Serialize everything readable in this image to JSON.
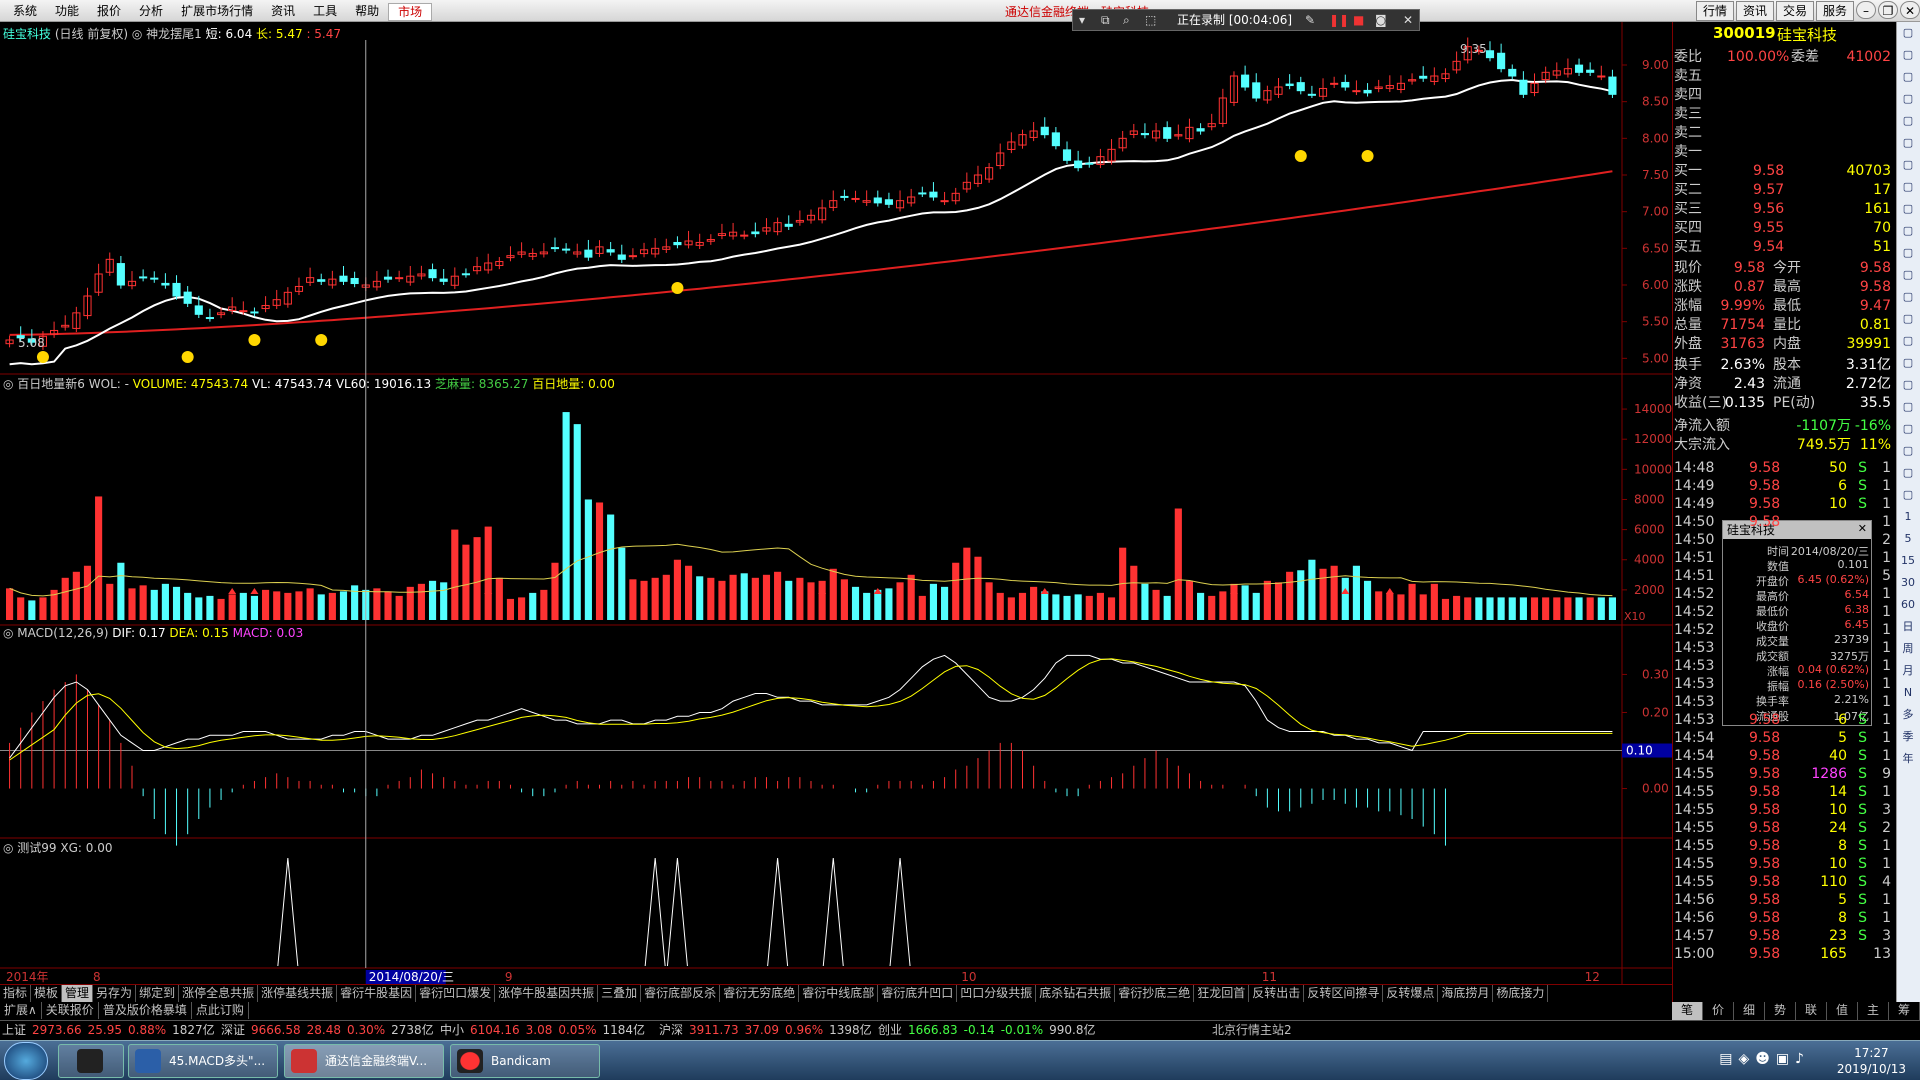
{
  "menu": [
    "系统",
    "功能",
    "报价",
    "分析",
    "扩展市场行情",
    "资讯",
    "工具",
    "帮助",
    "市场"
  ],
  "app_title": "通达信金融终端 - 硅宝科技",
  "recorder": {
    "status": "正在录制 [00:04:06]"
  },
  "top_right_buttons": [
    "行情",
    "资讯",
    "交易",
    "服务"
  ],
  "chart_header": {
    "stock": "硅宝科技",
    "mode": "(日线 前复权)",
    "indicator": "神龙摆尾1",
    "short_label": "短: 6.04",
    "long_label": "长: 5.47",
    "third_label": ": 5.47"
  },
  "price_axis": {
    "ticks": [
      "9.00",
      "8.50",
      "8.00",
      "7.50",
      "7.00",
      "6.50",
      "6.00",
      "5.50",
      "5.00"
    ]
  },
  "price_annotations": {
    "high": "9.35",
    "low": "5.08"
  },
  "volume_header": {
    "name": "百日地量新6",
    "wol": "WOL: -",
    "volume": "VOLUME: 47543.74",
    "vl": "VL: 47543.74",
    "vl60": "VL60: 19016.13",
    "zhima": "芝麻量: 8365.27",
    "dil": "百日地量: 0.00"
  },
  "volume_axis": {
    "ticks": [
      "14000",
      "12000",
      "10000",
      "8000",
      "6000",
      "4000",
      "2000"
    ],
    "unit": "X10"
  },
  "macd_header": {
    "name": "MACD(12,26,9)",
    "dif": "DIF: 0.17",
    "dea": "DEA: 0.15",
    "macd": "MACD: 0.03"
  },
  "macd_axis": {
    "ticks": [
      "0.30",
      "0.20",
      "0.10",
      "0.00"
    ],
    "current": "0.10"
  },
  "test_header": {
    "name": "测试99",
    "xg": "XG: 0.00"
  },
  "date_axis": {
    "year": "2014年",
    "months": [
      "8",
      "9",
      "10",
      "11",
      "12"
    ],
    "cursor": "2014/08/20/三",
    "period": "日线"
  },
  "panel": {
    "code": "300019",
    "name": "硅宝科技",
    "weibi": {
      "label": "委比",
      "value": "100.00%",
      "label2": "委差",
      "value2": "41002"
    },
    "sells": [
      {
        "label": "卖五"
      },
      {
        "label": "卖四"
      },
      {
        "label": "卖三"
      },
      {
        "label": "卖二"
      },
      {
        "label": "卖一"
      }
    ],
    "buys": [
      {
        "label": "买一",
        "price": "9.58",
        "vol": "40703"
      },
      {
        "label": "买二",
        "price": "9.57",
        "vol": "17"
      },
      {
        "label": "买三",
        "price": "9.56",
        "vol": "161"
      },
      {
        "label": "买四",
        "price": "9.55",
        "vol": "70"
      },
      {
        "label": "买五",
        "price": "9.54",
        "vol": "51"
      }
    ],
    "quote": [
      {
        "l1": "现价",
        "v1": "9.58",
        "l2": "今开",
        "v2": "9.58"
      },
      {
        "l1": "涨跌",
        "v1": "0.87",
        "l2": "最高",
        "v2": "9.58"
      },
      {
        "l1": "涨幅",
        "v1": "9.99%",
        "l2": "最低",
        "v2": "9.47"
      },
      {
        "l1": "总量",
        "v1": "71754",
        "l2": "量比",
        "v2": "0.81"
      },
      {
        "l1": "外盘",
        "v1": "31763",
        "l2": "内盘",
        "v2": "39991"
      }
    ],
    "fin": [
      {
        "l1": "换手",
        "v1": "2.63%",
        "l2": "股本",
        "v2": "3.31亿"
      },
      {
        "l1": "净资",
        "v1": "2.43",
        "l2": "流通",
        "v2": "2.72亿"
      },
      {
        "l1": "收益(三)",
        "v1": "0.135",
        "l2": "PE(动)",
        "v2": "35.5"
      }
    ],
    "flow": [
      {
        "l": "净流入额",
        "v": "-1107万",
        "p": "-16%"
      },
      {
        "l": "大宗流入",
        "v": "749.5万",
        "p": "11%"
      }
    ],
    "ticks": [
      {
        "t": "14:48",
        "p": "9.58",
        "v": "50",
        "s": "S",
        "n": "1"
      },
      {
        "t": "14:49",
        "p": "9.58",
        "v": "6",
        "s": "S",
        "n": "1"
      },
      {
        "t": "14:49",
        "p": "9.58",
        "v": "10",
        "s": "S",
        "n": "1"
      },
      {
        "t": "14:50",
        "p": "9.58",
        "v": "",
        "s": "",
        "n": "1"
      },
      {
        "t": "14:50",
        "p": "",
        "v": "",
        "s": "",
        "n": "2"
      },
      {
        "t": "14:51",
        "p": "",
        "v": "",
        "s": "",
        "n": "1"
      },
      {
        "t": "14:51",
        "p": "",
        "v": "",
        "s": "",
        "n": "5"
      },
      {
        "t": "14:52",
        "p": "",
        "v": "",
        "s": "",
        "n": "1"
      },
      {
        "t": "14:52",
        "p": "",
        "v": "",
        "s": "",
        "n": "1"
      },
      {
        "t": "14:52",
        "p": "",
        "v": "",
        "s": "",
        "n": "1"
      },
      {
        "t": "14:53",
        "p": "",
        "v": "",
        "s": "",
        "n": "1"
      },
      {
        "t": "14:53",
        "p": "",
        "v": "",
        "s": "",
        "n": "1"
      },
      {
        "t": "14:53",
        "p": "",
        "v": "",
        "s": "",
        "n": "1"
      },
      {
        "t": "14:53",
        "p": "",
        "v": "",
        "s": "",
        "n": "1"
      },
      {
        "t": "14:53",
        "p": "9.58",
        "v": "6",
        "s": "S",
        "n": "1"
      },
      {
        "t": "14:54",
        "p": "9.58",
        "v": "5",
        "s": "S",
        "n": "1"
      },
      {
        "t": "14:54",
        "p": "9.58",
        "v": "40",
        "s": "S",
        "n": "1"
      },
      {
        "t": "14:55",
        "p": "9.58",
        "v": "1286",
        "s": "S",
        "n": "9"
      },
      {
        "t": "14:55",
        "p": "9.58",
        "v": "14",
        "s": "S",
        "n": "1"
      },
      {
        "t": "14:55",
        "p": "9.58",
        "v": "10",
        "s": "S",
        "n": "3"
      },
      {
        "t": "14:55",
        "p": "9.58",
        "v": "24",
        "s": "S",
        "n": "2"
      },
      {
        "t": "14:55",
        "p": "9.58",
        "v": "8",
        "s": "S",
        "n": "1"
      },
      {
        "t": "14:55",
        "p": "9.58",
        "v": "10",
        "s": "S",
        "n": "1"
      },
      {
        "t": "14:55",
        "p": "9.58",
        "v": "110",
        "s": "S",
        "n": "4"
      },
      {
        "t": "14:56",
        "p": "9.58",
        "v": "5",
        "s": "S",
        "n": "1"
      },
      {
        "t": "14:56",
        "p": "9.58",
        "v": "8",
        "s": "S",
        "n": "1"
      },
      {
        "t": "14:57",
        "p": "9.58",
        "v": "23",
        "s": "S",
        "n": "3"
      },
      {
        "t": "15:00",
        "p": "9.58",
        "v": "165",
        "s": "",
        "n": "13"
      }
    ]
  },
  "tooltip": {
    "title": "硅宝科技",
    "rows": [
      {
        "l": "时间",
        "v": "2014/08/20/三"
      },
      {
        "l": "数值",
        "v": "0.101"
      },
      {
        "l": "开盘价",
        "v": "6.45 (0.62%)"
      },
      {
        "l": "最高价",
        "v": "6.54"
      },
      {
        "l": "最低价",
        "v": "6.38"
      },
      {
        "l": "收盘价",
        "v": "6.45"
      },
      {
        "l": "成交量",
        "v": "23739"
      },
      {
        "l": "成交额",
        "v": "3275万"
      },
      {
        "l": "涨幅",
        "v": "0.04 (0.62%)"
      },
      {
        "l": "振幅",
        "v": "0.16 (2.50%)"
      },
      {
        "l": "换手率",
        "v": "2.21%"
      },
      {
        "l": "流通股",
        "v": "1.07亿"
      }
    ]
  },
  "tabs": [
    "指标",
    "模板",
    "管理",
    "另存为",
    "绑定到",
    "涨停全息共振",
    "涨停基线共振",
    "睿衍牛股基因",
    "睿衍凹口爆发",
    "涨停牛股基因共振",
    "三叠加",
    "睿衍底部反杀",
    "睿衍无穷底绝",
    "睿衍中线底部",
    "睿衍底升凹口",
    "凹口分级共振",
    "底杀钻石共振",
    "睿衍抄底三绝",
    "狂龙回首",
    "反转出击",
    "反转区间擦寻",
    "反转爆点",
    "海底捞月",
    "杨底接力"
  ],
  "tabs2": [
    "扩展∧",
    "关联报价",
    "普及版价格暴填",
    "点此订购"
  ],
  "panel_tabs": [
    "笔",
    "价",
    "细",
    "势",
    "联",
    "值",
    "主",
    "筹"
  ],
  "status": [
    {
      "n": "上证",
      "v": "2973.66",
      "c": "25.95",
      "p": "0.88%",
      "a": "1827亿"
    },
    {
      "n": "深证",
      "v": "9666.58",
      "c": "28.48",
      "p": "0.30%",
      "a": "2738亿"
    },
    {
      "n": "中小",
      "v": "6104.16",
      "c": "3.08",
      "p": "0.05%",
      "a": "1184亿"
    },
    {
      "n": "沪深",
      "v": "3911.73",
      "c": "37.09",
      "p": "0.96%",
      "a": "1398亿"
    },
    {
      "n": "创业",
      "v": "1666.83",
      "c": "-0.14",
      "p": "-0.01%",
      "a": "990.8亿"
    }
  ],
  "status_server": "北京行情主站2",
  "taskbar": {
    "items": [
      "45.MACD多头\"...",
      "通达信金融终端V...",
      "Bandicam"
    ],
    "time": "17:27",
    "date": "2019/10/13"
  },
  "sidebar_icons": [
    "1",
    "5",
    "15",
    "30",
    "60",
    "日",
    "周",
    "月",
    "N",
    "多",
    "季",
    "年"
  ],
  "chart_data": {
    "type": "candlestick",
    "price_range": [
      4.95,
      9.45
    ],
    "closes": [
      5.25,
      5.28,
      5.22,
      5.3,
      5.38,
      5.45,
      5.62,
      5.85,
      6.15,
      6.35,
      6.0,
      6.05,
      6.1,
      6.08,
      6.0,
      5.85,
      5.75,
      5.6,
      5.55,
      5.62,
      5.7,
      5.65,
      5.62,
      5.72,
      5.8,
      5.9,
      5.98,
      6.1,
      6.05,
      6.08,
      6.05,
      6.02,
      6.0,
      6.05,
      6.08,
      6.1,
      6.12,
      6.15,
      6.1,
      6.05,
      6.12,
      6.15,
      6.25,
      6.3,
      6.32,
      6.4,
      6.45,
      6.43,
      6.45,
      6.5,
      6.48,
      6.45,
      6.38,
      6.52,
      6.45,
      6.35,
      6.4,
      6.48,
      6.5,
      6.52,
      6.55,
      6.6,
      6.58,
      6.62,
      6.7,
      6.72,
      6.68,
      6.7,
      6.78,
      6.85,
      6.8,
      6.88,
      6.95,
      7.05,
      7.15,
      7.2,
      7.18,
      7.15,
      7.12,
      7.1,
      7.15,
      7.2,
      7.25,
      7.2,
      7.15,
      7.25,
      7.4,
      7.5,
      7.6,
      7.8,
      7.95,
      8.05,
      8.1,
      8.05,
      7.9,
      7.7,
      7.6,
      7.65,
      7.75,
      7.85,
      8.0,
      8.1,
      8.05,
      8.1,
      8.0,
      8.05,
      8.15,
      8.1,
      8.2,
      8.55,
      8.85,
      8.7,
      8.55,
      8.65,
      8.7,
      8.72,
      8.65,
      8.6,
      8.68,
      8.75,
      8.7,
      8.65,
      8.62,
      8.7,
      8.72,
      8.75,
      8.8,
      8.82,
      8.85,
      8.88,
      9.05,
      9.25,
      9.2,
      9.1,
      8.95,
      8.85,
      8.6,
      8.75,
      8.9,
      8.92,
      8.95,
      8.9,
      8.9,
      8.85,
      8.6
    ],
    "volumes": [
      2100,
      1500,
      1300,
      1500,
      2000,
      2800,
      3200,
      3600,
      8200,
      2400,
      3800,
      2100,
      2300,
      2000,
      2400,
      2200,
      1800,
      1500,
      1600,
      1400,
      1700,
      1800,
      1600,
      2000,
      1900,
      1800,
      1900,
      2100,
      1700,
      1800,
      1900,
      2300,
      2000,
      2100,
      1900,
      1600,
      2200,
      2400,
      2600,
      2500,
      6000,
      5000,
      5500,
      6200,
      2800,
      1400,
      1500,
      1800,
      2000,
      3800,
      13800,
      13000,
      8000,
      7800,
      7000,
      4800,
      2700,
      2600,
      2800,
      3000,
      4000,
      3600,
      2900,
      2800,
      2600,
      3000,
      3100,
      2800,
      3000,
      3200,
      2600,
      2800,
      2500,
      2600,
      3400,
      2700,
      2200,
      1800,
      2000,
      2100,
      2500,
      3000,
      1600,
      2400,
      2200,
      3800,
      4800,
      4200,
      2500,
      1800,
      1500,
      1800,
      2200,
      1900,
      1700,
      1600,
      1700,
      1600,
      1800,
      1500,
      4800,
      3600,
      2400,
      2000,
      1600,
      7400,
      2600,
      1800,
      1600,
      1900,
      2400,
      2300,
      1800,
      2600,
      2500,
      3200,
      3300,
      4000,
      3400,
      3600,
      2800,
      3600,
      2600,
      1900,
      1800,
      1700,
      2400,
      1700,
      2400,
      1400,
      1600
    ],
    "ma_short_start": 5.05,
    "ma_short_end": 8.8,
    "ma_long_start": 5.32,
    "ma_long_end": 7.55,
    "macd_hist": [
      0.12,
      0.16,
      0.2,
      0.23,
      0.26,
      0.28,
      0.3,
      0.26,
      0.22,
      0.18,
      0.12,
      0.06,
      -0.02,
      -0.08,
      -0.12,
      -0.15,
      -0.12,
      -0.08,
      -0.05,
      -0.03,
      -0.01,
      0.01,
      0.02,
      0.03,
      0.04,
      0.03,
      0.02,
      0.02,
      0.01,
      0.01,
      -0.01,
      -0.01,
      -0.02,
      -0.02,
      0.01,
      0.02,
      0.03,
      0.05,
      0.04,
      0.03,
      0.02,
      0.01,
      0.01,
      0.02,
      0.02,
      0.01,
      -0.01,
      -0.02,
      -0.02,
      -0.01,
      0.01,
      0.02,
      0.01,
      0.01,
      0.02,
      0.01,
      0.02,
      0.01,
      0.02,
      0.02,
      0.02,
      0.03,
      0.03,
      0.02,
      0.02,
      0.01,
      0.02,
      0.03,
      0.03,
      0.02,
      0.03,
      0.03,
      0.02,
      0.01,
      0.01,
      0.0,
      -0.01,
      -0.01,
      0.01,
      0.02,
      0.02,
      0.02,
      0.01,
      0.02,
      0.03,
      0.05,
      0.06,
      0.08,
      0.1,
      0.12,
      0.12,
      0.1,
      0.06,
      0.02,
      -0.01,
      -0.02,
      -0.02,
      0.01,
      0.02,
      0.03,
      0.04,
      0.06,
      0.08,
      0.1,
      0.08,
      0.06,
      0.04,
      0.02,
      0.01,
      0.01,
      0.0,
      0.01,
      -0.02,
      -0.05,
      -0.06,
      -0.06,
      -0.05,
      -0.04,
      -0.03,
      -0.03,
      -0.04,
      -0.05,
      -0.05,
      -0.06,
      -0.06,
      -0.07,
      -0.08,
      -0.1,
      -0.12,
      -0.15
    ],
    "macd_dif": [
      0.08,
      0.12,
      0.16,
      0.2,
      0.24,
      0.27,
      0.28,
      0.26,
      0.22,
      0.18,
      0.14,
      0.12,
      0.1,
      0.1,
      0.11,
      0.12,
      0.13,
      0.13,
      0.14,
      0.14,
      0.14,
      0.15,
      0.15,
      0.15,
      0.14,
      0.13,
      0.13,
      0.13,
      0.13,
      0.14,
      0.14,
      0.15,
      0.15,
      0.14,
      0.13,
      0.13,
      0.13,
      0.14,
      0.14,
      0.15,
      0.16,
      0.17,
      0.18,
      0.18,
      0.19,
      0.2,
      0.21,
      0.2,
      0.19,
      0.18,
      0.18,
      0.17,
      0.17,
      0.17,
      0.18,
      0.18,
      0.17,
      0.17,
      0.18,
      0.18,
      0.19,
      0.19,
      0.2,
      0.2,
      0.21,
      0.23,
      0.24,
      0.25,
      0.25,
      0.24,
      0.24,
      0.23,
      0.23,
      0.22,
      0.22,
      0.22,
      0.22,
      0.22,
      0.23,
      0.24,
      0.26,
      0.29,
      0.32,
      0.34,
      0.35,
      0.33,
      0.3,
      0.27,
      0.24,
      0.23,
      0.23,
      0.24,
      0.26,
      0.29,
      0.33,
      0.35,
      0.35,
      0.35,
      0.34,
      0.34,
      0.33,
      0.33,
      0.32,
      0.31,
      0.3,
      0.29,
      0.28,
      0.28,
      0.28,
      0.28,
      0.28,
      0.27,
      0.23,
      0.18,
      0.16,
      0.15,
      0.15,
      0.15,
      0.15,
      0.14,
      0.14,
      0.13,
      0.13,
      0.12,
      0.12,
      0.11,
      0.1
    ],
    "xg_peaks": [
      25,
      58,
      60,
      69,
      74,
      80
    ],
    "ylim_volume": [
      0,
      15000
    ],
    "ylim_macd": [
      -0.13,
      0.38
    ]
  }
}
